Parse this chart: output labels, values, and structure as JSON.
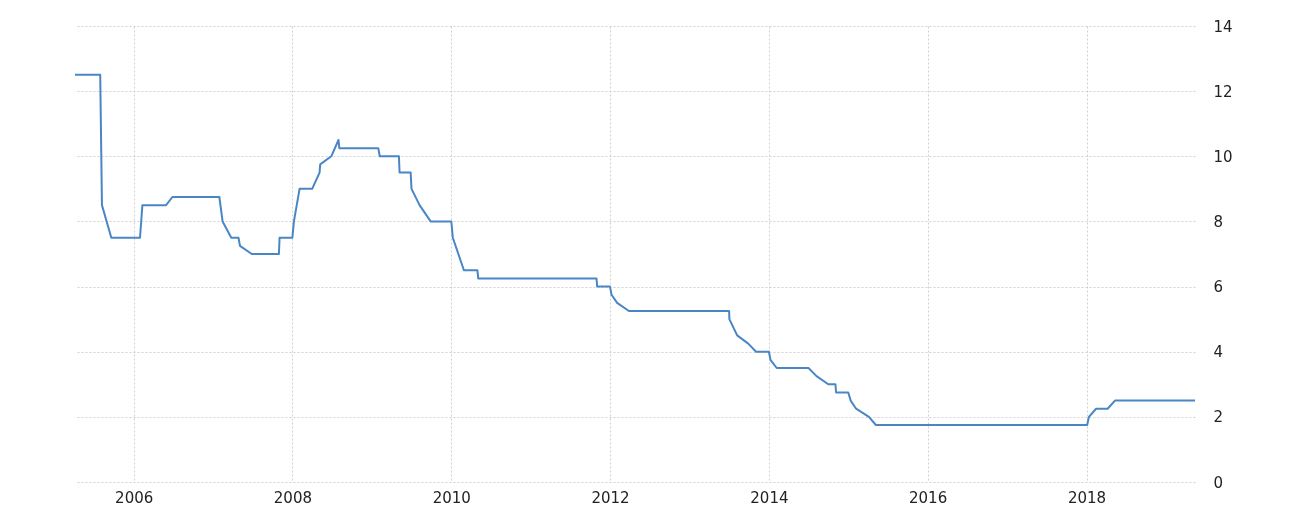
{
  "chart_data": {
    "type": "line",
    "x": [
      "2005-04-06",
      "2005-07-31",
      "2005-08-08",
      "2005-09-20",
      "2006-01-30",
      "2006-02-10",
      "2006-05-30",
      "2006-06-28",
      "2007-01-30",
      "2007-02-14",
      "2007-03-26",
      "2007-04-28",
      "2007-05-05",
      "2007-06-28",
      "2007-10-31",
      "2007-11-03",
      "2008-01-01",
      "2008-01-08",
      "2008-02-03",
      "2008-04-01",
      "2008-05-05",
      "2008-05-08",
      "2008-06-28",
      "2008-07-31",
      "2008-08-04",
      "2009-01-30",
      "2009-02-06",
      "2009-05-05",
      "2009-05-08",
      "2009-06-28",
      "2009-07-02",
      "2009-08-08",
      "2009-09-28",
      "2010-01-01",
      "2010-01-08",
      "2010-02-28",
      "2010-05-01",
      "2010-05-05",
      "2011-10-31",
      "2011-11-03",
      "2012-01-01",
      "2012-01-08",
      "2012-02-03",
      "2012-03-28",
      "2013-07-02",
      "2013-07-03",
      "2013-08-08",
      "2013-09-28",
      "2013-11-03",
      "2014-01-01",
      "2014-01-08",
      "2014-02-06",
      "2014-07-02",
      "2014-08-08",
      "2014-10-01",
      "2014-11-03",
      "2014-11-06",
      "2015-01-01",
      "2015-01-12",
      "2015-02-06",
      "2015-04-06",
      "2015-05-08",
      "2018-01-04",
      "2018-01-12",
      "2018-02-14",
      "2018-04-08",
      "2018-05-12",
      "2019-05-15"
    ],
    "series": [
      {
        "color": "#4a86c5",
        "values": [
          12.5,
          12.5,
          8.5,
          7.5,
          7.5,
          8.5,
          8.5,
          8.75,
          8.75,
          8.0,
          7.5,
          7.5,
          7.25,
          7.0,
          7.0,
          7.5,
          7.5,
          8.0,
          9.0,
          9.0,
          9.5,
          9.75,
          10.0,
          10.5,
          10.25,
          10.25,
          10.0,
          10.0,
          9.5,
          9.5,
          9.0,
          8.5,
          8.0,
          8.0,
          7.5,
          6.5,
          6.5,
          6.25,
          6.25,
          6.0,
          6.0,
          5.75,
          5.5,
          5.25,
          5.25,
          5.0,
          4.5,
          4.25,
          4.0,
          4.0,
          3.75,
          3.5,
          3.5,
          3.25,
          3.0,
          3.0,
          2.75,
          2.75,
          2.5,
          2.25,
          2.0,
          1.75,
          1.75,
          2.0,
          2.25,
          2.25,
          2.5,
          2.5
        ]
      }
    ],
    "xlim": [
      "2005-04-06",
      "2019-05-15"
    ],
    "xticks": [
      "2006",
      "2008",
      "2010",
      "2012",
      "2014",
      "2016",
      "2018"
    ],
    "ylim": [
      0,
      14
    ],
    "yticks": [
      0,
      2,
      4,
      6,
      8,
      10,
      12,
      14
    ],
    "grid": true
  }
}
